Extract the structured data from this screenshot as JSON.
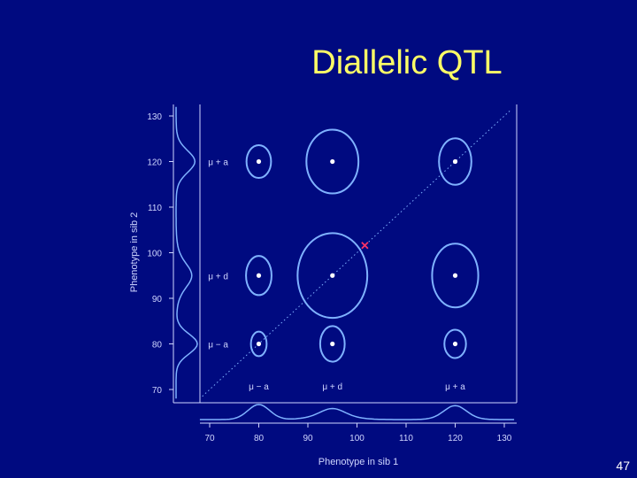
{
  "slide": {
    "title": "Diallelic QTL",
    "page_number": "47"
  },
  "colors": {
    "background": "#000a80",
    "title": "#ffff66",
    "axis": "#cfd6ff",
    "curve": "#7fb2ff",
    "point": "#ffffff",
    "marker": "#ff3366"
  },
  "chart_data": {
    "type": "scatter",
    "title": "",
    "xlabel": "Phenotype in sib 1",
    "ylabel": "Phenotype in sib 2",
    "xlim": [
      68,
      132
    ],
    "ylim": [
      68,
      132
    ],
    "xticks": [
      70,
      80,
      90,
      100,
      110,
      120,
      130
    ],
    "yticks": [
      70,
      80,
      90,
      100,
      110,
      120,
      130
    ],
    "x_genotype_labels": [
      {
        "x": 80,
        "label": "μ − a"
      },
      {
        "x": 95,
        "label": "μ + d"
      },
      {
        "x": 120,
        "label": "μ + a"
      }
    ],
    "y_genotype_labels": [
      {
        "y": 80,
        "label": "μ − a"
      },
      {
        "y": 95,
        "label": "μ + d"
      },
      {
        "y": 120,
        "label": "μ + a"
      }
    ],
    "centers": [
      {
        "x": 80,
        "y": 120,
        "rx": 2.5,
        "ry": 3.6
      },
      {
        "x": 95,
        "y": 120,
        "rx": 5.3,
        "ry": 7.0
      },
      {
        "x": 120,
        "y": 120,
        "rx": 3.3,
        "ry": 5.1
      },
      {
        "x": 80,
        "y": 95,
        "rx": 2.6,
        "ry": 4.3
      },
      {
        "x": 95,
        "y": 95,
        "rx": 7.1,
        "ry": 9.3
      },
      {
        "x": 120,
        "y": 95,
        "rx": 4.7,
        "ry": 7.0
      },
      {
        "x": 80,
        "y": 80,
        "rx": 1.6,
        "ry": 2.7
      },
      {
        "x": 95,
        "y": 80,
        "rx": 2.5,
        "ry": 3.9
      },
      {
        "x": 120,
        "y": 80,
        "rx": 2.2,
        "ry": 3.1
      }
    ],
    "mean_marker": {
      "x": 101.6,
      "y": 101.6
    },
    "diagonal": true,
    "grid": false
  }
}
